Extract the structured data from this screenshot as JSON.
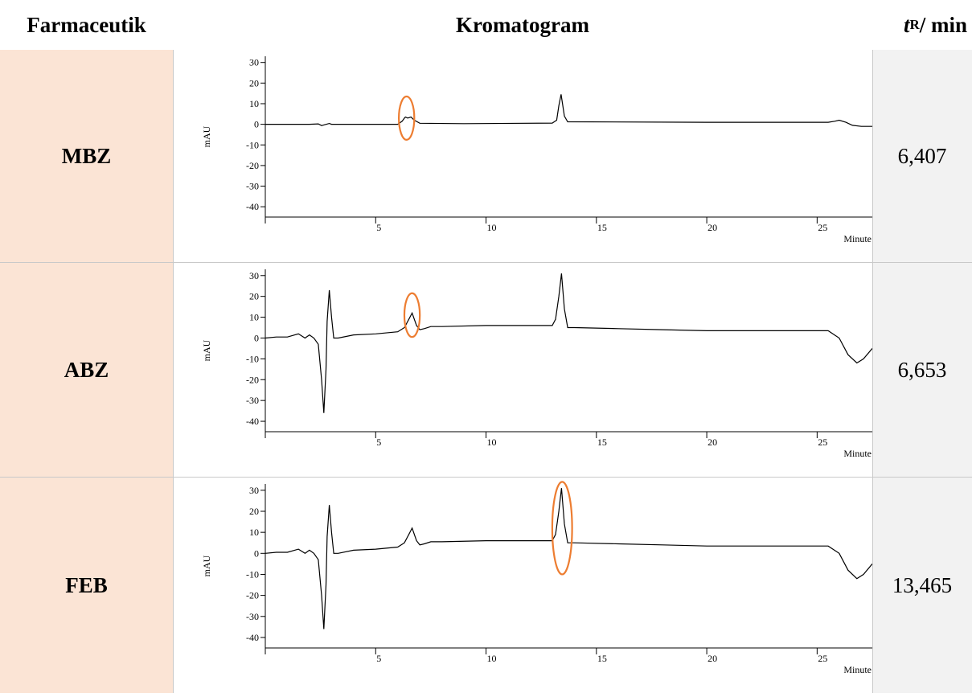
{
  "header": {
    "col_drug": "Farmaceutik",
    "col_chrom": "Kromatogram",
    "col_tr_italic": "t",
    "col_tr_sub": "R",
    "col_tr_unit": " / min"
  },
  "rows": [
    {
      "drug": "MBZ",
      "tr": "6,407"
    },
    {
      "drug": "ABZ",
      "tr": "6,653"
    },
    {
      "drug": "FEB",
      "tr": "13,465"
    }
  ],
  "colors": {
    "name_cell_bg": "#fbe4d5",
    "tr_cell_bg": "#f2f2f2",
    "trace": "#000000",
    "highlight": "#ed7d31"
  },
  "chart_data": [
    {
      "type": "line",
      "ylabel": "mAU",
      "xlabel": "Minute",
      "xlim": [
        0,
        27.5
      ],
      "ylim": [
        -45,
        33
      ],
      "yticks": [
        30,
        20,
        10,
        0,
        -10,
        -20,
        -30,
        -40
      ],
      "xticks": [
        5,
        10,
        15,
        20,
        25
      ],
      "highlight": {
        "x": 6.4,
        "y": 3,
        "rx": 0.35,
        "ry": 10.5
      },
      "series": [
        {
          "x": [
            0,
            2,
            2.4,
            2.55,
            2.7,
            2.9,
            3.0,
            3.2,
            6.0,
            6.2,
            6.3,
            6.35,
            6.45,
            6.6,
            6.75,
            7.0,
            9,
            13.0,
            13.2,
            13.3,
            13.4,
            13.55,
            13.7,
            20,
            25.5,
            25.8,
            26.0,
            26.3,
            26.6,
            27.0,
            27.5
          ],
          "y": [
            0,
            0,
            0.2,
            -0.6,
            -0.2,
            0.4,
            0,
            0,
            0,
            1.5,
            3,
            3.5,
            3,
            3.5,
            2,
            0.5,
            0.3,
            0.6,
            2,
            9,
            14.5,
            4,
            1.2,
            1,
            1,
            1.5,
            2,
            1,
            -0.5,
            -1,
            -1
          ]
        }
      ]
    },
    {
      "type": "line",
      "ylabel": "mAU",
      "xlabel": "Minute",
      "xlim": [
        0,
        27.5
      ],
      "ylim": [
        -45,
        33
      ],
      "yticks": [
        30,
        20,
        10,
        0,
        -10,
        -20,
        -30,
        -40
      ],
      "xticks": [
        5,
        10,
        15,
        20,
        25
      ],
      "highlight": {
        "x": 6.65,
        "y": 11,
        "rx": 0.35,
        "ry": 10.5
      },
      "series": [
        {
          "x": [
            0,
            0.5,
            1,
            1.5,
            1.8,
            2,
            2.2,
            2.4,
            2.55,
            2.65,
            2.75,
            2.8,
            2.9,
            3.0,
            3.1,
            3.3,
            4,
            5,
            6,
            6.3,
            6.5,
            6.65,
            6.85,
            7.0,
            7.2,
            7.5,
            8,
            10,
            12,
            13.0,
            13.15,
            13.3,
            13.42,
            13.55,
            13.7,
            14,
            16,
            18,
            20,
            22,
            24,
            25.5,
            26,
            26.4,
            26.8,
            27.1,
            27.5
          ],
          "y": [
            0,
            0.5,
            0.5,
            2,
            0,
            1.5,
            0,
            -3,
            -20,
            -36,
            -15,
            8,
            23,
            10,
            0,
            0,
            1.5,
            2,
            3,
            5,
            9,
            12,
            6,
            4,
            4.5,
            5.5,
            5.5,
            6,
            6,
            6,
            9,
            20,
            31,
            14,
            5,
            5,
            4.5,
            4,
            3.5,
            3.5,
            3.5,
            3.5,
            0,
            -8,
            -12,
            -10,
            -5
          ]
        }
      ]
    },
    {
      "type": "line",
      "ylabel": "mAU",
      "xlabel": "Minute",
      "xlim": [
        0,
        27.5
      ],
      "ylim": [
        -45,
        33
      ],
      "yticks": [
        30,
        20,
        10,
        0,
        -10,
        -20,
        -30,
        -40
      ],
      "xticks": [
        5,
        10,
        15,
        20,
        25
      ],
      "highlight": {
        "x": 13.45,
        "y": 12,
        "rx": 0.45,
        "ry": 22
      },
      "series": [
        {
          "x": [
            0,
            0.5,
            1,
            1.5,
            1.8,
            2,
            2.2,
            2.4,
            2.55,
            2.65,
            2.75,
            2.8,
            2.9,
            3.0,
            3.1,
            3.3,
            4,
            5,
            6,
            6.3,
            6.5,
            6.65,
            6.85,
            7.0,
            7.2,
            7.5,
            8,
            10,
            12,
            13.0,
            13.15,
            13.3,
            13.42,
            13.55,
            13.7,
            14,
            16,
            18,
            20,
            22,
            24,
            25.5,
            26,
            26.4,
            26.8,
            27.1,
            27.5
          ],
          "y": [
            0,
            0.5,
            0.5,
            2,
            0,
            1.5,
            0,
            -3,
            -20,
            -36,
            -15,
            8,
            23,
            10,
            0,
            0,
            1.5,
            2,
            3,
            5,
            9,
            12,
            6,
            4,
            4.5,
            5.5,
            5.5,
            6,
            6,
            6,
            9,
            20,
            31,
            14,
            5,
            5,
            4.5,
            4,
            3.5,
            3.5,
            3.5,
            3.5,
            0,
            -8,
            -12,
            -10,
            -5
          ]
        }
      ]
    }
  ]
}
